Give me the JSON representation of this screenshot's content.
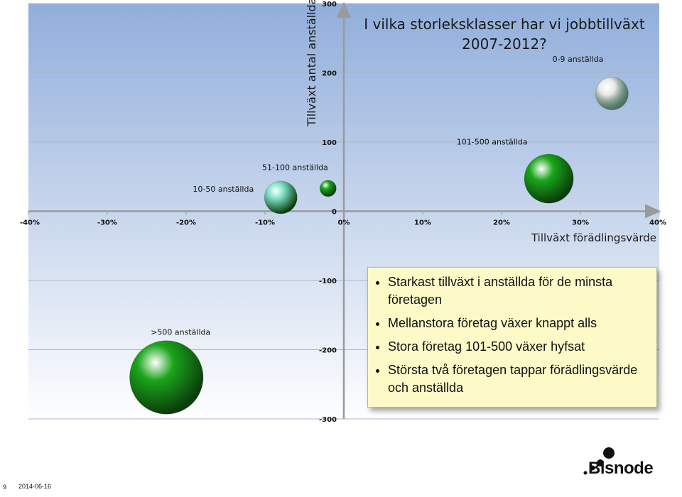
{
  "chart_data": {
    "type": "scatter",
    "title": "I vilka storleksklasser har vi jobbtillväxt 2007-2012?",
    "xlabel": "Tillväxt förädlingsvärde",
    "ylabel": "Tillväxt antal anställda",
    "xlim": [
      -0.4,
      0.4
    ],
    "ylim": [
      -300,
      300
    ],
    "x_ticks": [
      "-40%",
      "-30%",
      "-20%",
      "-10%",
      "0%",
      "10%",
      "20%",
      "30%",
      "40%"
    ],
    "y_ticks": [
      "300",
      "200",
      "100",
      "0",
      "-100",
      "-200",
      "-300"
    ],
    "points": [
      {
        "label": "0-9 anställda",
        "x": 0.34,
        "y": 170,
        "size": 2,
        "color": "#e8e8e8"
      },
      {
        "label": "101-500 anställda",
        "x": 0.26,
        "y": 47,
        "size": 3,
        "color": "#1aa51a"
      },
      {
        "label": "51-100 anställda",
        "x": -0.02,
        "y": 33,
        "size": 1,
        "color": "#1aa51a"
      },
      {
        "label": "10-50 anställda",
        "x": -0.08,
        "y": 20,
        "size": 2,
        "color": "#7fe0c8"
      },
      {
        "label": ">500 anställda",
        "x": -0.225,
        "y": -240,
        "size": 4.5,
        "color": "#1aa51a"
      }
    ]
  },
  "callout": {
    "bullets": [
      "Starkast tillväxt i anställda för de minsta företagen",
      "Mellanstora företag växer knappt alls",
      "Stora företag 101-500 växer hyfsat",
      "Största två företagen tappar förädlingsvärde och anställda"
    ]
  },
  "footer": {
    "page_number": "9",
    "date": "2014-06-16",
    "logo": "Bisnode"
  }
}
